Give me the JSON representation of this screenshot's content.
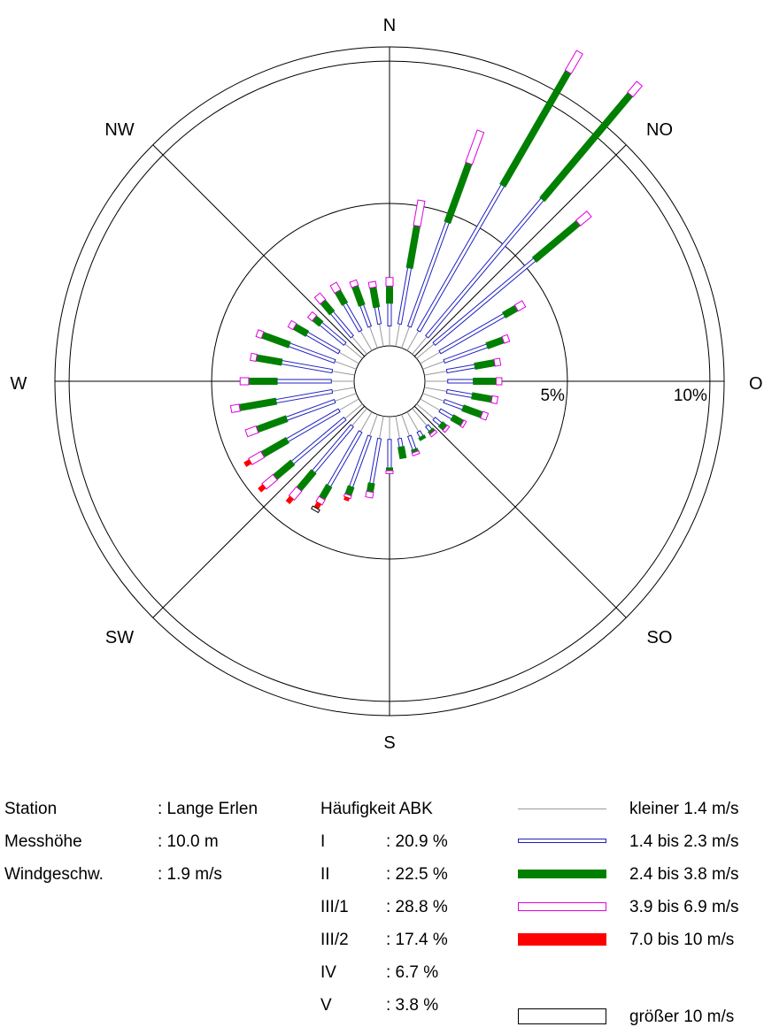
{
  "chart_data": {
    "type": "windrose",
    "directions": [
      {
        "deg": 0,
        "total": 2.4,
        "bands": [
          0.7,
          0.8,
          0.6,
          0.3,
          0.0,
          0.0
        ]
      },
      {
        "deg": 10,
        "total": 5.2,
        "bands": [
          0.8,
          2.0,
          1.5,
          0.9,
          0.0,
          0.0
        ]
      },
      {
        "deg": 20,
        "total": 8.1,
        "bands": [
          0.8,
          3.9,
          2.2,
          1.2,
          0.0,
          0.0
        ]
      },
      {
        "deg": 30,
        "total": 12.1,
        "bands": [
          0.8,
          5.9,
          4.6,
          0.8,
          0.0,
          0.0
        ]
      },
      {
        "deg": 40,
        "total": 12.4,
        "bands": [
          0.8,
          6.3,
          4.8,
          0.5,
          0.0,
          0.0
        ]
      },
      {
        "deg": 50,
        "total": 7.9,
        "bands": [
          0.8,
          4.6,
          2.0,
          0.5,
          0.0,
          0.0
        ]
      },
      {
        "deg": 60,
        "total": 4.2,
        "bands": [
          0.8,
          2.6,
          0.5,
          0.3,
          0.0,
          0.0
        ]
      },
      {
        "deg": 70,
        "total": 3.2,
        "bands": [
          0.8,
          1.6,
          0.6,
          0.2,
          0.0,
          0.0
        ]
      },
      {
        "deg": 80,
        "total": 2.7,
        "bands": [
          0.8,
          1.0,
          0.7,
          0.2,
          0.0,
          0.0
        ]
      },
      {
        "deg": 90,
        "total": 2.7,
        "bands": [
          0.8,
          0.9,
          0.8,
          0.2,
          0.0,
          0.0
        ]
      },
      {
        "deg": 100,
        "total": 2.6,
        "bands": [
          0.8,
          0.9,
          0.7,
          0.2,
          0.0,
          0.0
        ]
      },
      {
        "deg": 110,
        "total": 2.4,
        "bands": [
          0.8,
          0.7,
          0.7,
          0.2,
          0.0,
          0.0
        ]
      },
      {
        "deg": 120,
        "total": 1.8,
        "bands": [
          0.8,
          0.5,
          0.4,
          0.1,
          0.0,
          0.0
        ]
      },
      {
        "deg": 130,
        "total": 1.4,
        "bands": [
          0.8,
          0.3,
          0.2,
          0.1,
          0.0,
          0.0
        ]
      },
      {
        "deg": 140,
        "total": 1.2,
        "bands": [
          0.8,
          0.2,
          0.1,
          0.1,
          0.0,
          0.0
        ]
      },
      {
        "deg": 150,
        "total": 1.1,
        "bands": [
          0.8,
          0.2,
          0.1,
          0.0,
          0.0,
          0.0
        ]
      },
      {
        "deg": 160,
        "total": 1.5,
        "bands": [
          0.8,
          0.5,
          0.1,
          0.1,
          0.0,
          0.0
        ]
      },
      {
        "deg": 170,
        "total": 1.5,
        "bands": [
          0.8,
          0.3,
          0.4,
          0.0,
          0.0,
          0.0
        ]
      },
      {
        "deg": 180,
        "total": 2.0,
        "bands": [
          0.8,
          1.0,
          0.1,
          0.1,
          0.0,
          0.0
        ]
      },
      {
        "deg": 190,
        "total": 2.9,
        "bands": [
          0.8,
          1.6,
          0.3,
          0.2,
          0.0,
          0.0
        ]
      },
      {
        "deg": 200,
        "total": 3.2,
        "bands": [
          0.8,
          1.9,
          0.3,
          0.1,
          0.1,
          0.0
        ]
      },
      {
        "deg": 210,
        "total": 4.0,
        "bands": [
          0.8,
          2.2,
          0.5,
          0.2,
          0.2,
          0.1
        ]
      },
      {
        "deg": 220,
        "total": 4.3,
        "bands": [
          0.8,
          2.1,
          0.8,
          0.4,
          0.2,
          0.0
        ]
      },
      {
        "deg": 230,
        "total": 4.7,
        "bands": [
          0.8,
          2.4,
          0.8,
          0.5,
          0.2,
          0.0
        ]
      },
      {
        "deg": 240,
        "total": 4.6,
        "bands": [
          0.8,
          2.1,
          1.0,
          0.5,
          0.2,
          0.0
        ]
      },
      {
        "deg": 250,
        "total": 4.1,
        "bands": [
          0.8,
          1.8,
          1.1,
          0.4,
          0.0,
          0.0
        ]
      },
      {
        "deg": 260,
        "total": 4.4,
        "bands": [
          0.8,
          2.0,
          1.3,
          0.3,
          0.0,
          0.0
        ]
      },
      {
        "deg": 270,
        "total": 4.0,
        "bands": [
          0.8,
          1.9,
          1.0,
          0.3,
          0.0,
          0.0
        ]
      },
      {
        "deg": 280,
        "total": 3.7,
        "bands": [
          0.8,
          1.8,
          0.9,
          0.2,
          0.0,
          0.0
        ]
      },
      {
        "deg": 290,
        "total": 3.7,
        "bands": [
          0.8,
          1.7,
          1.0,
          0.2,
          0.0,
          0.0
        ]
      },
      {
        "deg": 300,
        "total": 2.8,
        "bands": [
          0.8,
          1.3,
          0.5,
          0.2,
          0.0,
          0.0
        ]
      },
      {
        "deg": 310,
        "total": 2.4,
        "bands": [
          0.8,
          1.1,
          0.3,
          0.2,
          0.0,
          0.0
        ]
      },
      {
        "deg": 320,
        "total": 2.7,
        "bands": [
          0.8,
          1.1,
          0.5,
          0.3,
          0.0,
          0.0
        ]
      },
      {
        "deg": 330,
        "total": 2.7,
        "bands": [
          0.8,
          1.1,
          0.5,
          0.3,
          0.0,
          0.0
        ]
      },
      {
        "deg": 340,
        "total": 2.5,
        "bands": [
          0.8,
          0.8,
          0.7,
          0.2,
          0.0,
          0.0
        ]
      },
      {
        "deg": 350,
        "total": 2.3,
        "bands": [
          0.8,
          0.6,
          0.7,
          0.2,
          0.0,
          0.0
        ]
      }
    ],
    "rings": [
      {
        "value": 5,
        "label": "5%"
      },
      {
        "value": 10,
        "label": "10%"
      }
    ],
    "rmax": 10.5,
    "compass": [
      {
        "deg": 0,
        "label": "N"
      },
      {
        "deg": 45,
        "label": "NO"
      },
      {
        "deg": 90,
        "label": "O"
      },
      {
        "deg": 135,
        "label": "SO"
      },
      {
        "deg": 180,
        "label": "S"
      },
      {
        "deg": 225,
        "label": "SW"
      },
      {
        "deg": 270,
        "label": "W"
      },
      {
        "deg": 315,
        "label": "NW"
      }
    ],
    "speed_classes": [
      {
        "label": "kleiner 1.4 m/s",
        "color": "#999999",
        "style": "line"
      },
      {
        "label": "1.4 bis 2.3 m/s",
        "color": "#2020c0",
        "style": "outline"
      },
      {
        "label": "2.4 bis 3.8 m/s",
        "color": "#008000",
        "style": "filled"
      },
      {
        "label": "3.9 bis 6.9 m/s",
        "color": "#e000e0",
        "style": "outline"
      },
      {
        "label": "7.0 bis 10 m/s",
        "color": "#ff0000",
        "style": "filled"
      },
      {
        "label": "größer 10 m/s",
        "color": "#000000",
        "style": "outline"
      }
    ]
  },
  "station_info": [
    {
      "label": "Station",
      "value": ": Lange Erlen"
    },
    {
      "label": "Messhöhe",
      "value": ": 10.0 m"
    },
    {
      "label": "Windgeschw.",
      "value": ": 1.9 m/s"
    }
  ],
  "frequency": {
    "title": "Häufigkeit ABK",
    "classes": [
      {
        "label": "I",
        "value": ": 20.9 %"
      },
      {
        "label": "II",
        "value": ": 22.5 %"
      },
      {
        "label": "III/1",
        "value": ": 28.8 %"
      },
      {
        "label": "III/2",
        "value": ": 17.4 %"
      },
      {
        "label": "IV",
        "value": ": 6.7 %"
      },
      {
        "label": "V",
        "value": ": 3.8 %"
      }
    ]
  }
}
